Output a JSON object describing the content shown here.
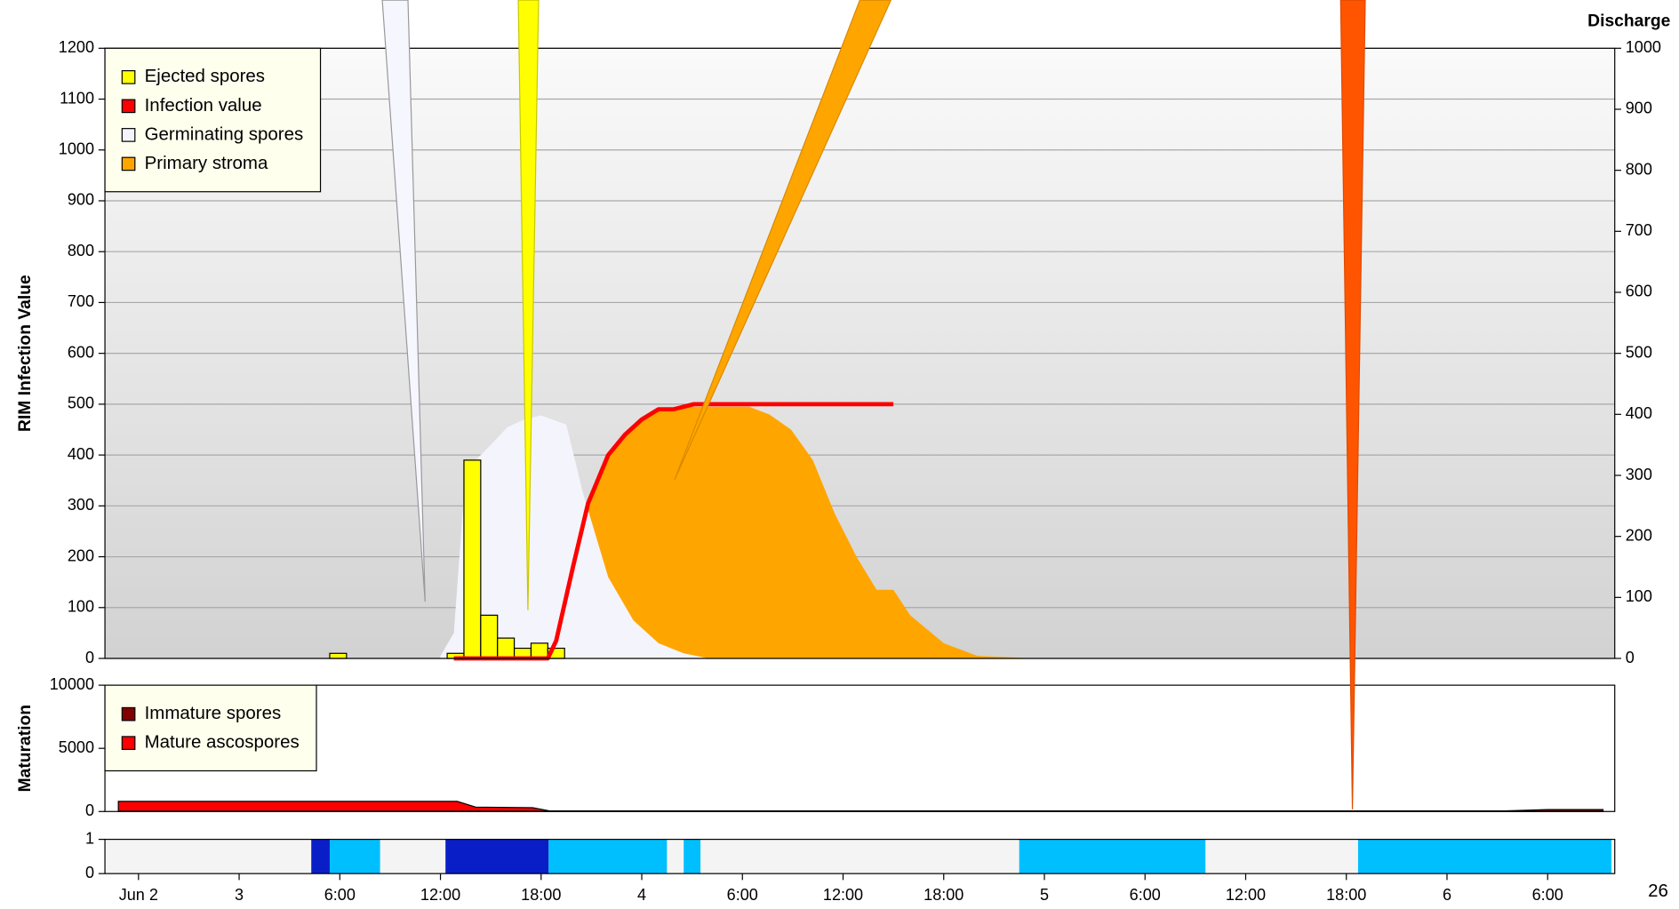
{
  "chart_data": [
    {
      "type": "combo",
      "y_label": "RIM Infection Value",
      "y2_label": "Discharge",
      "xlim": [
        -8,
        82
      ],
      "ylim": [
        0,
        1200
      ],
      "yticks": [
        0,
        100,
        200,
        300,
        400,
        500,
        600,
        700,
        800,
        900,
        1000,
        1100,
        1200
      ],
      "y2lim": [
        0,
        1000
      ],
      "y2ticks": [
        0,
        100,
        200,
        300,
        400,
        500,
        600,
        700,
        800,
        900,
        1000
      ],
      "grid": true,
      "legend": "upper-left",
      "series": [
        {
          "name": "Ejected spores",
          "type": "bar",
          "color": "#ffff00",
          "x": [
            5.9,
            12.9,
            13.9,
            14.9,
            15.9,
            16.9,
            17.9,
            18.9
          ],
          "values": [
            10,
            10,
            390,
            85,
            40,
            20,
            30,
            20
          ]
        },
        {
          "name": "Infection value",
          "type": "line",
          "color": "#ff0000",
          "x": [
            12.8,
            18.4,
            18.9,
            19.9,
            20.8,
            22,
            23,
            24,
            25,
            25.9,
            27.1,
            39
          ],
          "values": [
            0,
            0,
            35,
            180,
            305,
            400,
            440,
            470,
            490,
            490,
            500,
            500
          ]
        },
        {
          "name": "Germinating spores",
          "type": "area",
          "color": "#f4f4fc",
          "x": [
            12,
            12.8,
            13.5,
            15,
            16,
            17,
            18,
            19.5,
            20.5,
            22,
            23.5,
            25,
            26.5,
            28
          ],
          "values": [
            5,
            50,
            370,
            420,
            455,
            470,
            478,
            460,
            325,
            160,
            75,
            30,
            10,
            0
          ]
        },
        {
          "name": "Primary stroma",
          "type": "area",
          "color": "#ffa500",
          "x": [
            20.7,
            20.8,
            22,
            23,
            24,
            25,
            27,
            30.4,
            31.6,
            32.9,
            34.2,
            35.5,
            36.8,
            38,
            39,
            40,
            42,
            44,
            47.6
          ],
          "values": [
            0,
            300,
            400,
            440,
            470,
            490,
            495,
            495,
            480,
            450,
            390,
            285,
            200,
            135,
            135,
            85,
            30,
            5,
            0
          ]
        }
      ]
    },
    {
      "type": "combo",
      "y_label": "Maturation",
      "xlim": [
        -8,
        82
      ],
      "ylim": [
        0,
        10000
      ],
      "yticks": [
        0,
        5000,
        10000
      ],
      "legend": "upper-left",
      "series": [
        {
          "name": "Immature spores",
          "type": "area",
          "color": "#800000",
          "x": [
            -7.2,
            75,
            78,
            81.3
          ],
          "values": [
            30,
            30,
            150,
            150
          ]
        },
        {
          "name": "Mature ascospores",
          "type": "area",
          "color": "#ff0000",
          "x": [
            -7.2,
            13,
            14.1,
            17.5,
            18.5,
            81.3
          ],
          "values": [
            800,
            800,
            350,
            300,
            50,
            50
          ]
        }
      ]
    },
    {
      "type": "timeline",
      "xlim": [
        -8,
        82
      ],
      "ylim": [
        0,
        1
      ],
      "yticks": [
        0,
        1
      ],
      "x_start": [
        4.3,
        5.4,
        12.3,
        18.45,
        26.5,
        46.5,
        66.7
      ],
      "x_end": [
        5.4,
        8.4,
        18.45,
        25.5,
        27.5,
        57.6,
        81.8
      ],
      "values": [
        1,
        1,
        1,
        1,
        1,
        1,
        1
      ],
      "colors": [
        "#0a1ec8",
        "#00bfff",
        "#0a1ec8",
        "#00bfff",
        "#00bfff",
        "#00bfff",
        "#00bfff"
      ],
      "xticks": [
        {
          "value": -6,
          "label": "Jun 2"
        },
        {
          "value": 0,
          "label": "3"
        },
        {
          "value": 6,
          "label": "6:00"
        },
        {
          "value": 12,
          "label": "12:00"
        },
        {
          "value": 18,
          "label": "18:00"
        },
        {
          "value": 24,
          "label": "4"
        },
        {
          "value": 30,
          "label": "6:00"
        },
        {
          "value": 36,
          "label": "12:00"
        },
        {
          "value": 42,
          "label": "18:00"
        },
        {
          "value": 48,
          "label": "5"
        },
        {
          "value": 54,
          "label": "6:00"
        },
        {
          "value": 60,
          "label": "12:00"
        },
        {
          "value": 66,
          "label": "18:00"
        },
        {
          "value": 72,
          "label": "6"
        },
        {
          "value": 78,
          "label": "6:00"
        }
      ]
    }
  ],
  "page_number": "26"
}
